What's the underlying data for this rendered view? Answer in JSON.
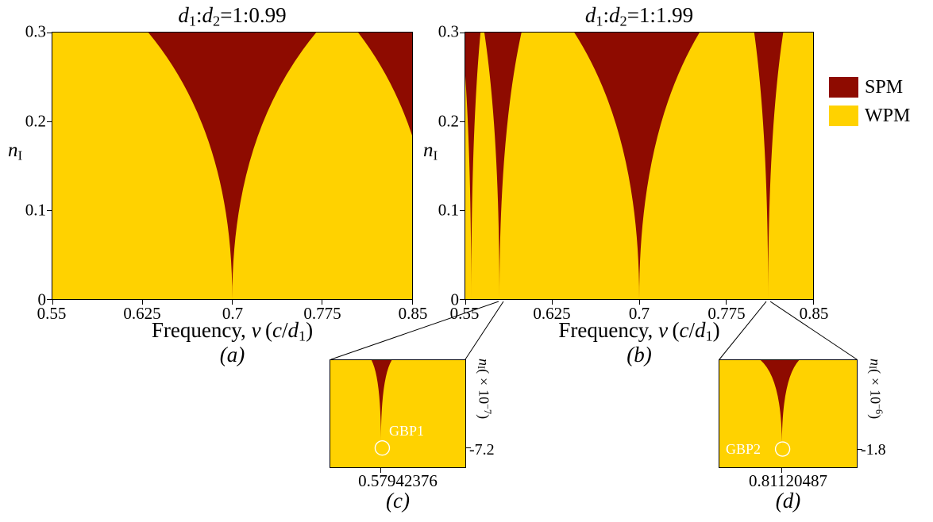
{
  "colors": {
    "spm": "#8E0B00",
    "wpm": "#FFD200",
    "frame": "#000000",
    "marker_circle": "#FFFFFF"
  },
  "legend": {
    "items": [
      {
        "label": "SPM",
        "color": "#8E0B00"
      },
      {
        "label": "WPM",
        "color": "#FFD200"
      }
    ]
  },
  "panel_a": {
    "title_html": "<i>d</i><sub>1</sub>:<i>d</i><sub>2</sub>=1:0.99",
    "xticks": [
      "0.55",
      "0.625",
      "0.7",
      "0.775",
      "0.85"
    ],
    "yticks": [
      "0.3",
      "0.2",
      "0.1",
      "0"
    ],
    "ylabel_html": "<i>n</i><sub>I</sub>",
    "xlabel_html": "Frequency, <i>&#957;</i>&#8201;(<i>c</i>/<i>d</i><sub>1</sub>)",
    "caption": "(a)"
  },
  "panel_b": {
    "title_html": "<i>d</i><sub>1</sub>:<i>d</i><sub>2</sub>=1:1.99",
    "xticks": [
      "0.55",
      "0.625",
      "0.7",
      "0.775",
      "0.85"
    ],
    "yticks": [
      "0.3",
      "0.2",
      "0.1",
      "0"
    ],
    "ylabel_html": "<i>n</i><sub>I</sub>",
    "xlabel_html": "Frequency, <i>&#957;</i>&#8201;(<i>c</i>/<i>d</i><sub>1</sub>)",
    "caption": "(b)"
  },
  "inset_c": {
    "x_value": "0.57942376",
    "y_tick": "-7.2",
    "ylabel_html": "<i>n</i><sub>I</sub>(&#215;10<sup>&#8722;7</sup>)",
    "point_label": "GBP1",
    "caption": "(c)"
  },
  "inset_d": {
    "x_value": "0.81120487",
    "y_tick": "-1.8",
    "ylabel_html": "<i>n</i><sub>I</sub>(&#215;10<sup>&#8722;6</sup>)",
    "point_label": "GBP2",
    "caption": "(d)"
  },
  "chart_data": [
    {
      "id": "a",
      "type": "region-map",
      "title": "d1:d2 = 1:0.99",
      "xlabel": "Frequency, nu (c/d1)",
      "ylabel": "n_I",
      "xlim": [
        0.55,
        0.85
      ],
      "ylim": [
        0,
        0.3
      ],
      "xticks": [
        0.55,
        0.625,
        0.7,
        0.775,
        0.85
      ],
      "yticks": [
        0,
        0.1,
        0.2,
        0.3
      ],
      "background_phase": "WPM",
      "side_curve": 0.38,
      "regions": [
        {
          "phase": "SPM",
          "apex_nu": 0.7,
          "apex_n": 0,
          "top_n": 0.3,
          "half_width_left": 0.07,
          "half_width_right": 0.07
        },
        {
          "phase": "SPM",
          "apex_nu": 0.87,
          "apex_n": 0,
          "top_n": 0.3,
          "half_width_left": 0.065,
          "half_width_right": 0.065
        }
      ]
    },
    {
      "id": "b",
      "type": "region-map",
      "title": "d1:d2 = 1:1.99",
      "xlabel": "Frequency, nu (c/d1)",
      "ylabel": "n_I",
      "xlim": [
        0.55,
        0.85
      ],
      "ylim": [
        0,
        0.3
      ],
      "xticks": [
        0.55,
        0.625,
        0.7,
        0.775,
        0.85
      ],
      "yticks": [
        0,
        0.1,
        0.2,
        0.3
      ],
      "background_phase": "WPM",
      "side_curve": 0.38,
      "regions": [
        {
          "phase": "SPM",
          "apex_nu": 0.5551,
          "apex_n": 0,
          "top_n": 0.3,
          "half_width_left": 0.008,
          "half_width_right": 0.008
        },
        {
          "phase": "SPM",
          "apex_nu": 0.57942376,
          "apex_n": 0,
          "top_n": 0.3,
          "half_width_left": 0.013,
          "half_width_right": 0.019
        },
        {
          "phase": "SPM",
          "apex_nu": 0.7,
          "apex_n": 0,
          "top_n": 0.3,
          "half_width_left": 0.056,
          "half_width_right": 0.052
        },
        {
          "phase": "SPM",
          "apex_nu": 0.81120487,
          "apex_n": 0,
          "top_n": 0.3,
          "half_width_left": 0.012,
          "half_width_right": 0.013
        }
      ]
    },
    {
      "id": "c",
      "type": "region-zoom",
      "x_center": 0.57942376,
      "ylabel": "n_I (x10^-7)",
      "ytick_value": -7.2,
      "point_label": "GBP1",
      "side_curve": 0.22,
      "wedge": {
        "top_left_frac": 0.305,
        "top_right_frac": 0.455,
        "tip_x_frac": 0.375,
        "tip_y_frac": 0.77
      },
      "marker": {
        "x_frac": 0.385,
        "y_frac": 0.82,
        "r": 9
      }
    },
    {
      "id": "d",
      "type": "region-zoom",
      "x_center": 0.81120487,
      "ylabel": "n_I (x10^-6)",
      "ytick_value": -1.8,
      "point_label": "GBP2",
      "side_curve": 0.22,
      "wedge": {
        "top_left_frac": 0.3,
        "top_right_frac": 0.58,
        "tip_x_frac": 0.455,
        "tip_y_frac": 0.8
      },
      "marker": {
        "x_frac": 0.46,
        "y_frac": 0.83,
        "r": 9
      }
    }
  ]
}
